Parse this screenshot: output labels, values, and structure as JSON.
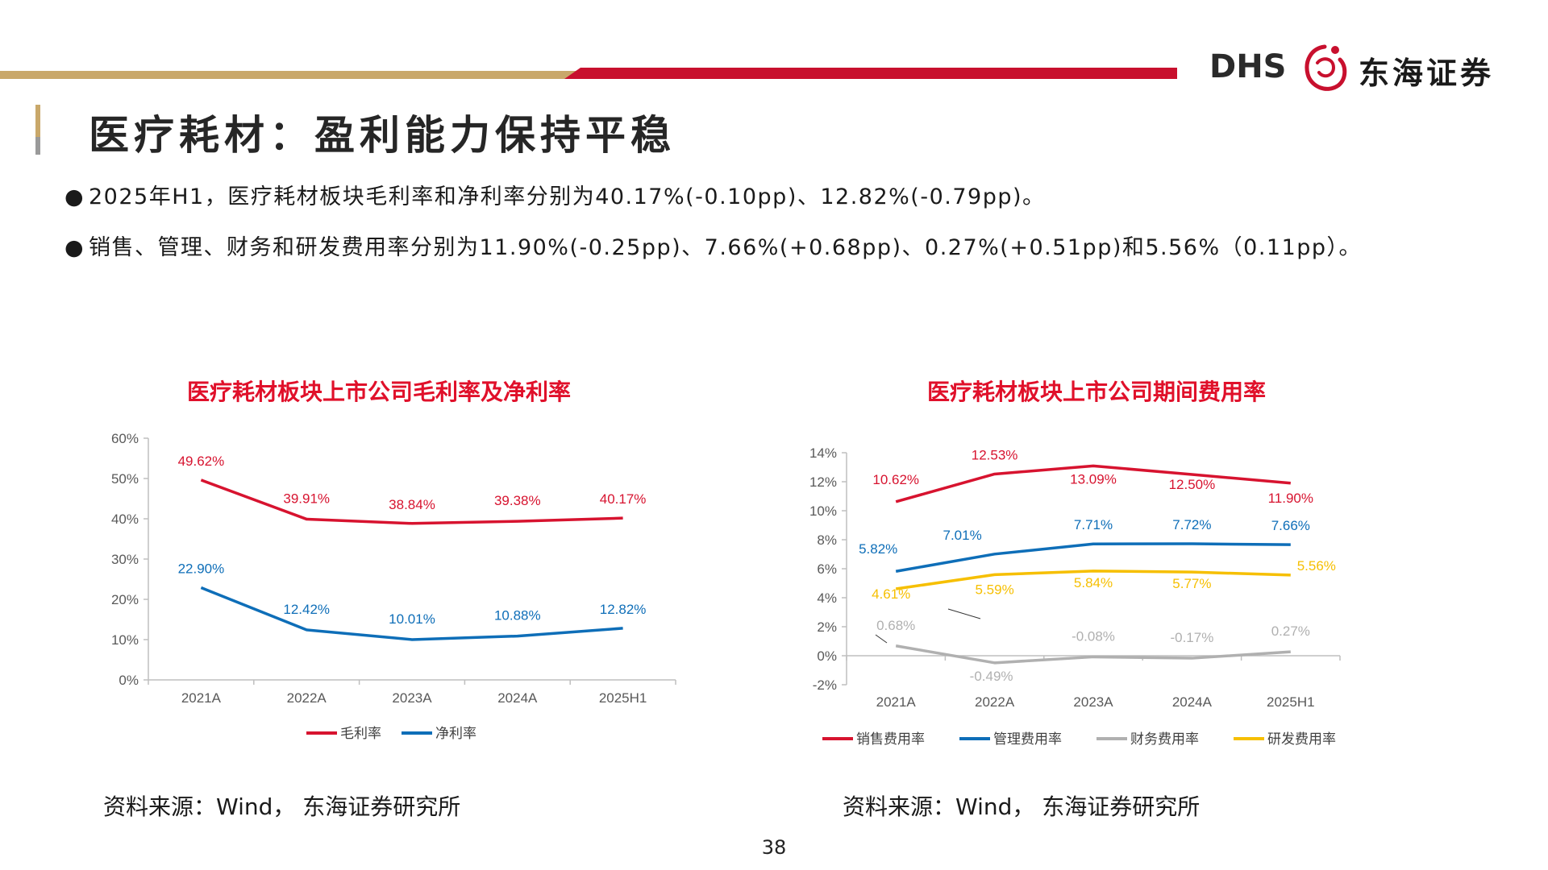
{
  "header": {
    "title": "医疗耗材：盈利能力保持平稳",
    "logo_text": "DHS",
    "logo_cn": "东海证券"
  },
  "bullets": [
    "2025年H1，医疗耗材板块毛利率和净利率分别为40.17%(-0.10pp)、12.82%(-0.79pp)。",
    "销售、管理、财务和研发费用率分别为11.90%(-0.25pp)、7.66%(+0.68pp)、0.27%(+0.51pp)和5.56%（0.11pp）。"
  ],
  "colors": {
    "red": "#D7132F",
    "blue": "#0E6EB8",
    "gray": "#B0B0B0",
    "yellow": "#F6BF00",
    "gold": "#C9A86A",
    "title_red": "#E0102A"
  },
  "chart_data": [
    {
      "type": "line",
      "title": "医疗耗材板块上市公司毛利率及净利率",
      "categories": [
        "2021A",
        "2022A",
        "2023A",
        "2024A",
        "2025H1"
      ],
      "yticks": [
        "60%",
        "50%",
        "40%",
        "30%",
        "20%",
        "10%",
        "0%"
      ],
      "ylim": [
        0,
        60
      ],
      "series": [
        {
          "name": "毛利率",
          "color": "#D7132F",
          "values": [
            49.62,
            39.91,
            38.84,
            39.38,
            40.17
          ],
          "labels": [
            "49.62%",
            "39.91%",
            "38.84%",
            "39.38%",
            "40.17%"
          ]
        },
        {
          "name": "净利率",
          "color": "#0E6EB8",
          "values": [
            22.9,
            12.42,
            10.01,
            10.88,
            12.82
          ],
          "labels": [
            "22.90%",
            "12.42%",
            "10.01%",
            "10.88%",
            "12.82%"
          ]
        }
      ],
      "legend": "bottom",
      "source": "资料来源：Wind， 东海证券研究所"
    },
    {
      "type": "line",
      "title": "医疗耗材板块上市公司期间费用率",
      "categories": [
        "2021A",
        "2022A",
        "2023A",
        "2024A",
        "2025H1"
      ],
      "yticks": [
        "14%",
        "12%",
        "10%",
        "8%",
        "6%",
        "4%",
        "2%",
        "0%",
        "-2%"
      ],
      "ylim": [
        -2,
        14
      ],
      "series": [
        {
          "name": "销售费用率",
          "color": "#D7132F",
          "values": [
            10.62,
            12.53,
            13.09,
            12.5,
            11.9
          ],
          "labels": [
            "10.62%",
            "12.53%",
            "13.09%",
            "12.50%",
            "11.90%"
          ]
        },
        {
          "name": "管理费用率",
          "color": "#0E6EB8",
          "values": [
            5.82,
            7.01,
            7.71,
            7.72,
            7.66
          ],
          "labels": [
            "5.82%",
            "7.01%",
            "7.71%",
            "7.72%",
            "7.66%"
          ]
        },
        {
          "name": "财务费用率",
          "color": "#B0B0B0",
          "values": [
            0.68,
            -0.49,
            -0.08,
            -0.17,
            0.27
          ],
          "labels": [
            "0.68%",
            "-0.49%",
            "-0.08%",
            "-0.17%",
            "0.27%"
          ]
        },
        {
          "name": "研发费用率",
          "color": "#F6BF00",
          "values": [
            4.61,
            5.59,
            5.84,
            5.77,
            5.56
          ],
          "labels": [
            "4.61%",
            "5.59%",
            "5.84%",
            "5.77%",
            "5.56%"
          ]
        }
      ],
      "legend": "bottom",
      "source": "资料来源：Wind， 东海证券研究所"
    }
  ],
  "footer": {
    "page_number": "38"
  }
}
